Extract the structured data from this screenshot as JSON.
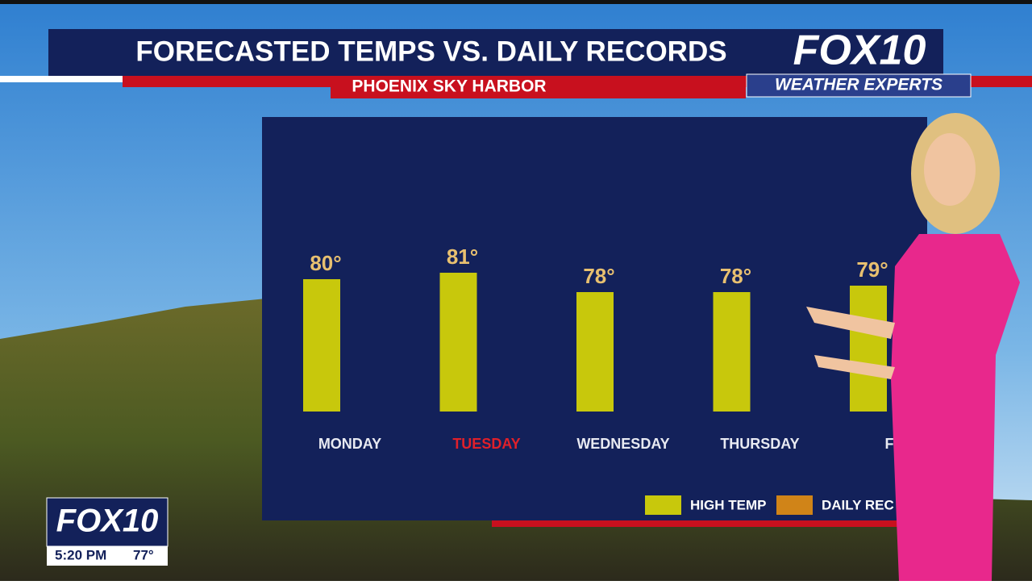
{
  "header": {
    "title": "FORECASTED TEMPS VS. DAILY RECORDS",
    "subtitle": "PHOENIX SKY HARBOR",
    "logo": "FOX10",
    "logo_tag": "WEATHER EXPERTS"
  },
  "bug": {
    "logo": "FOX10",
    "time": "5:20 PM",
    "temp": "77°"
  },
  "chart_data": {
    "type": "bar",
    "categories": [
      "MONDAY",
      "TUESDAY",
      "WEDNESDAY",
      "THURSDAY",
      "FRI"
    ],
    "label_colors": [
      "#e8eaf2",
      "#e0202a",
      "#e8eaf2",
      "#e8eaf2",
      "#e8eaf2"
    ],
    "series": [
      {
        "name": "HIGH TEMP",
        "color": "#c8c80c",
        "values": [
          80,
          81,
          78,
          78,
          79
        ],
        "value_labels": [
          "80°",
          "81°",
          "78°",
          "78°",
          "79°"
        ]
      },
      {
        "name": "DAILY REC",
        "color": "#d08418",
        "values": [
          null,
          null,
          null,
          null,
          null
        ]
      }
    ],
    "ylim": [
      59.5,
      81
    ]
  }
}
